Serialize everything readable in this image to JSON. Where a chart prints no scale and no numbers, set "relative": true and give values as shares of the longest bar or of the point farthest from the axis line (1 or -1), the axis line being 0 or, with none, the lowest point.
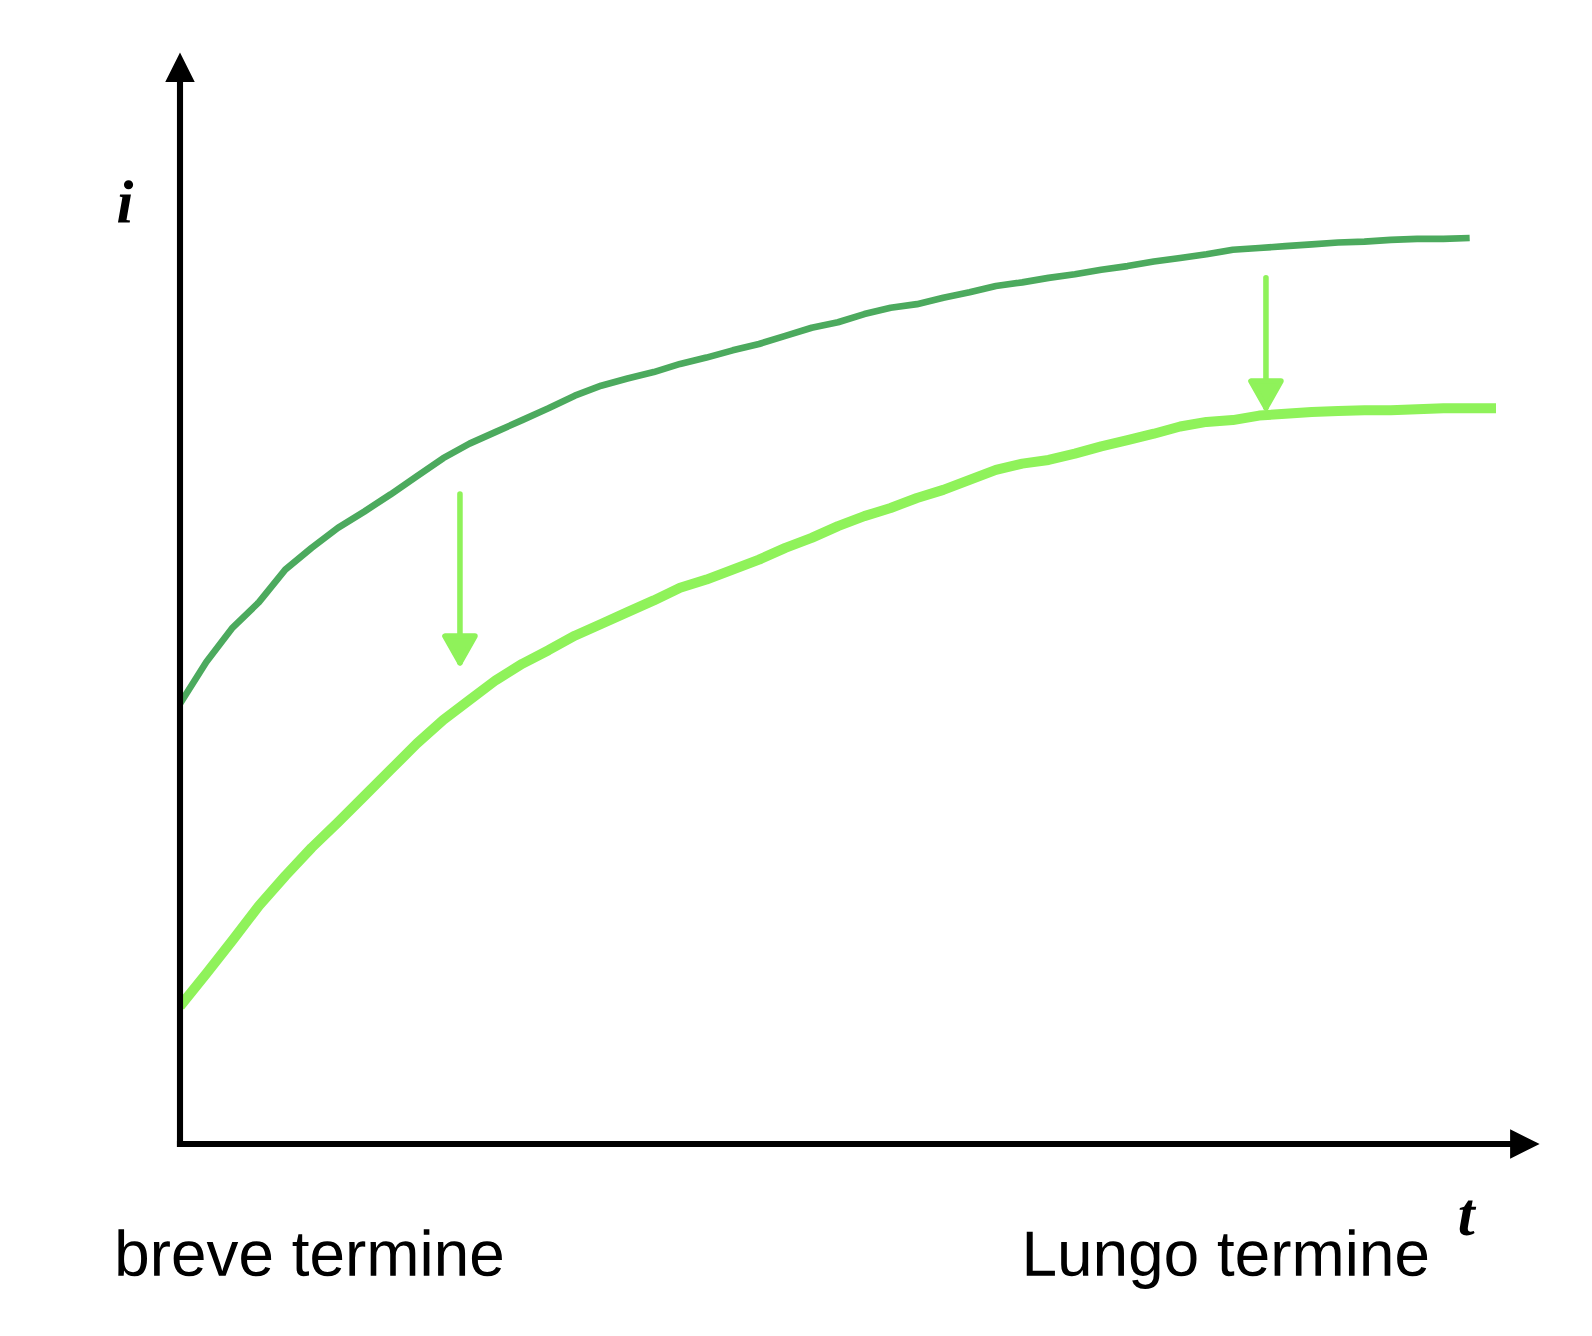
{
  "chart_data": {
    "type": "line",
    "relative": true,
    "xlabel": "t",
    "ylabel": "i",
    "annotations": [
      "breve termine",
      "Lungo termine"
    ],
    "categories": [
      null,
      null,
      null,
      null,
      null,
      null,
      null,
      null,
      null,
      null,
      null,
      null,
      null,
      null,
      null,
      null,
      null,
      null,
      null,
      null,
      null,
      null,
      null,
      null,
      null,
      null,
      null,
      null,
      null,
      null,
      null,
      null,
      null,
      null,
      null,
      null,
      null,
      null,
      null,
      null,
      null,
      null,
      null,
      null,
      null,
      null,
      null,
      null,
      null,
      null,
      null
    ],
    "series": [
      {
        "color": "#4caa5e",
        "values": [
          0.486,
          0.532,
          0.57,
          0.598,
          0.634,
          0.658,
          0.68,
          0.698,
          0.717,
          0.737,
          0.757,
          0.773,
          0.786,
          0.799,
          0.812,
          0.826,
          0.837,
          0.845,
          0.852,
          0.861,
          0.868,
          0.876,
          0.883,
          0.892,
          0.901,
          0.907,
          0.916,
          0.923,
          0.927,
          0.934,
          0.94,
          0.947,
          0.951,
          0.956,
          0.96,
          0.965,
          0.969,
          0.974,
          0.978,
          0.982,
          0.987,
          0.989,
          0.991,
          0.993,
          0.995,
          0.996,
          0.998,
          0.999,
          0.999,
          1.0,
          null
        ]
      },
      {
        "color": "#8ff25a",
        "values": [
          0.152,
          0.188,
          0.225,
          0.263,
          0.296,
          0.327,
          0.355,
          0.384,
          0.413,
          0.442,
          0.468,
          0.49,
          0.512,
          0.53,
          0.545,
          0.561,
          0.574,
          0.587,
          0.6,
          0.614,
          0.623,
          0.634,
          0.645,
          0.658,
          0.669,
          0.682,
          0.693,
          0.702,
          0.713,
          0.722,
          0.733,
          0.744,
          0.751,
          0.755,
          0.762,
          0.77,
          0.777,
          0.784,
          0.792,
          0.797,
          0.799,
          0.804,
          0.806,
          0.808,
          0.809,
          0.81,
          0.81,
          0.811,
          0.812,
          0.812,
          0.812
        ]
      }
    ]
  }
}
